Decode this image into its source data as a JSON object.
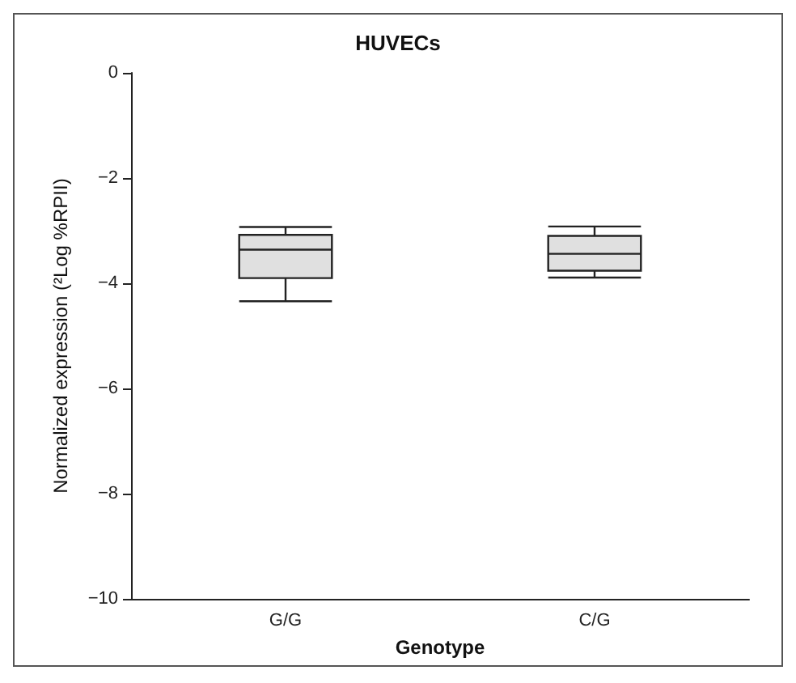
{
  "chart_data": {
    "type": "box",
    "title": "HUVECs",
    "xlabel": "Genotype",
    "ylabel": "Normalized expression (²Log %RPII)",
    "categories": [
      "G/G",
      "C/G"
    ],
    "series": [
      {
        "color": "#e0e0e0",
        "boxes": [
          {
            "low": -4.34,
            "q1": -3.9,
            "median": -3.36,
            "q3": -3.08,
            "high": -2.93
          },
          {
            "low": -3.89,
            "q1": -3.76,
            "median": -3.44,
            "q3": -3.1,
            "high": -2.92
          }
        ]
      }
    ],
    "ylim": [
      -10,
      0
    ],
    "yticks": [
      -10,
      -8,
      -6,
      -4,
      -2,
      0
    ],
    "grid": false
  }
}
